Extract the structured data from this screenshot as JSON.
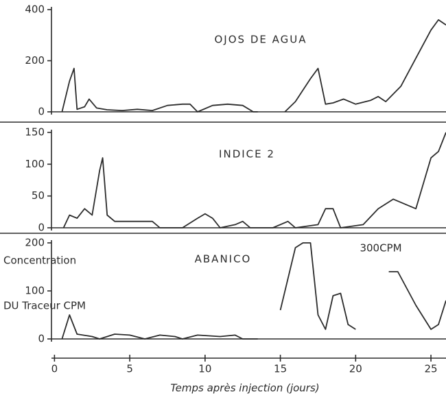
{
  "chart_data": [
    {
      "type": "line",
      "title": "OJOS DE AGUA",
      "color": "#2b2b2b",
      "x": [
        0.5,
        1.0,
        1.3,
        1.5,
        2.0,
        2.3,
        2.8,
        3.5,
        4.5,
        5.5,
        6.5,
        7.5,
        8.5,
        9.0,
        9.5,
        10.5,
        11.5,
        12.5,
        13.2,
        13.5,
        14.5,
        15.3,
        16.0,
        17.0,
        17.5,
        18.0,
        18.5,
        19.2,
        20.0,
        21.0,
        21.5,
        22.0,
        23.0,
        24.0,
        25.0,
        25.5,
        26.0
      ],
      "values": [
        0,
        120,
        170,
        10,
        20,
        50,
        15,
        8,
        5,
        10,
        5,
        25,
        30,
        30,
        0,
        25,
        30,
        25,
        0,
        0,
        null,
        0,
        40,
        130,
        170,
        30,
        35,
        50,
        30,
        45,
        60,
        40,
        100,
        210,
        320,
        360,
        340
      ],
      "xlim": [
        -0.2,
        26
      ],
      "ylim": [
        0,
        400
      ],
      "yticks": [
        0,
        200,
        400
      ]
    },
    {
      "type": "line",
      "title": "INDICE 2",
      "color": "#2b2b2b",
      "x": [
        0.6,
        1.0,
        1.5,
        2.0,
        2.5,
        3.0,
        3.2,
        3.5,
        4.0,
        6.5,
        7.0,
        8.5,
        9.5,
        10.0,
        10.5,
        11.0,
        12.0,
        12.5,
        13.0,
        14.5,
        15.5,
        16.0,
        17.5,
        18.0,
        18.5,
        19.0,
        20.5,
        21.5,
        22.5,
        23.5,
        24.0,
        25.0,
        25.5,
        26.0
      ],
      "values": [
        0,
        20,
        15,
        30,
        20,
        90,
        110,
        20,
        10,
        10,
        0,
        0,
        15,
        22,
        15,
        0,
        5,
        10,
        0,
        0,
        10,
        0,
        5,
        30,
        30,
        0,
        5,
        30,
        45,
        35,
        30,
        110,
        120,
        150
      ],
      "xlim": [
        -0.2,
        26
      ],
      "ylim": [
        0,
        150
      ],
      "yticks": [
        0,
        50,
        100,
        150
      ]
    },
    {
      "type": "line",
      "title": "ABANICO",
      "color": "#2b2b2b",
      "annotation": "300CPM",
      "ylabel": [
        "Concentration",
        "DU Traceur CPM"
      ],
      "xlabel": "Temps après injection (jours)",
      "x": [
        0.5,
        1.0,
        1.5,
        2.5,
        3.0,
        4.0,
        5.0,
        6.0,
        7.0,
        8.0,
        8.5,
        9.5,
        11.0,
        12.0,
        12.5,
        13.5,
        14.0,
        15.0,
        16.0,
        16.5,
        17.0,
        17.5,
        18.0,
        18.5,
        19.0,
        19.5,
        20.0,
        21.0,
        22.2,
        22.8,
        24.0,
        25.0,
        25.5,
        26.0
      ],
      "values": [
        0,
        50,
        10,
        5,
        0,
        10,
        8,
        0,
        8,
        5,
        0,
        8,
        5,
        8,
        0,
        0,
        null,
        60,
        190,
        200,
        200,
        50,
        20,
        90,
        95,
        30,
        20,
        null,
        140,
        140,
        70,
        20,
        30,
        80
      ],
      "xlim": [
        -0.2,
        26
      ],
      "ylim": [
        0,
        200
      ],
      "yticks": [
        0,
        100,
        200
      ],
      "xticks": [
        0,
        5,
        10,
        15,
        20,
        25
      ]
    }
  ]
}
